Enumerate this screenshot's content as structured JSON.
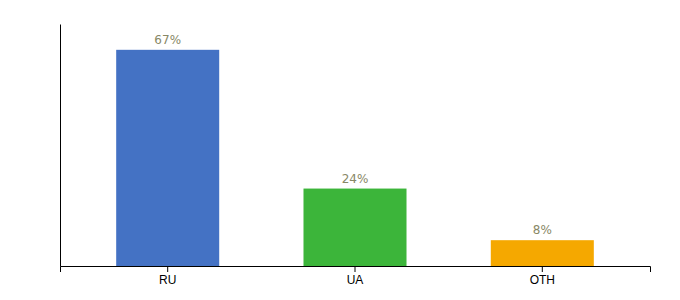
{
  "chart_data": {
    "type": "bar",
    "categories": [
      "RU",
      "UA",
      "OTH"
    ],
    "values": [
      67,
      24,
      8
    ],
    "value_labels": [
      "67%",
      "24%",
      "8%"
    ],
    "colors": [
      "#4472c4",
      "#3cb53a",
      "#f5a800"
    ],
    "ylim": [
      0,
      75
    ],
    "data_labels": true,
    "tick_labels": "x",
    "grid": false
  }
}
